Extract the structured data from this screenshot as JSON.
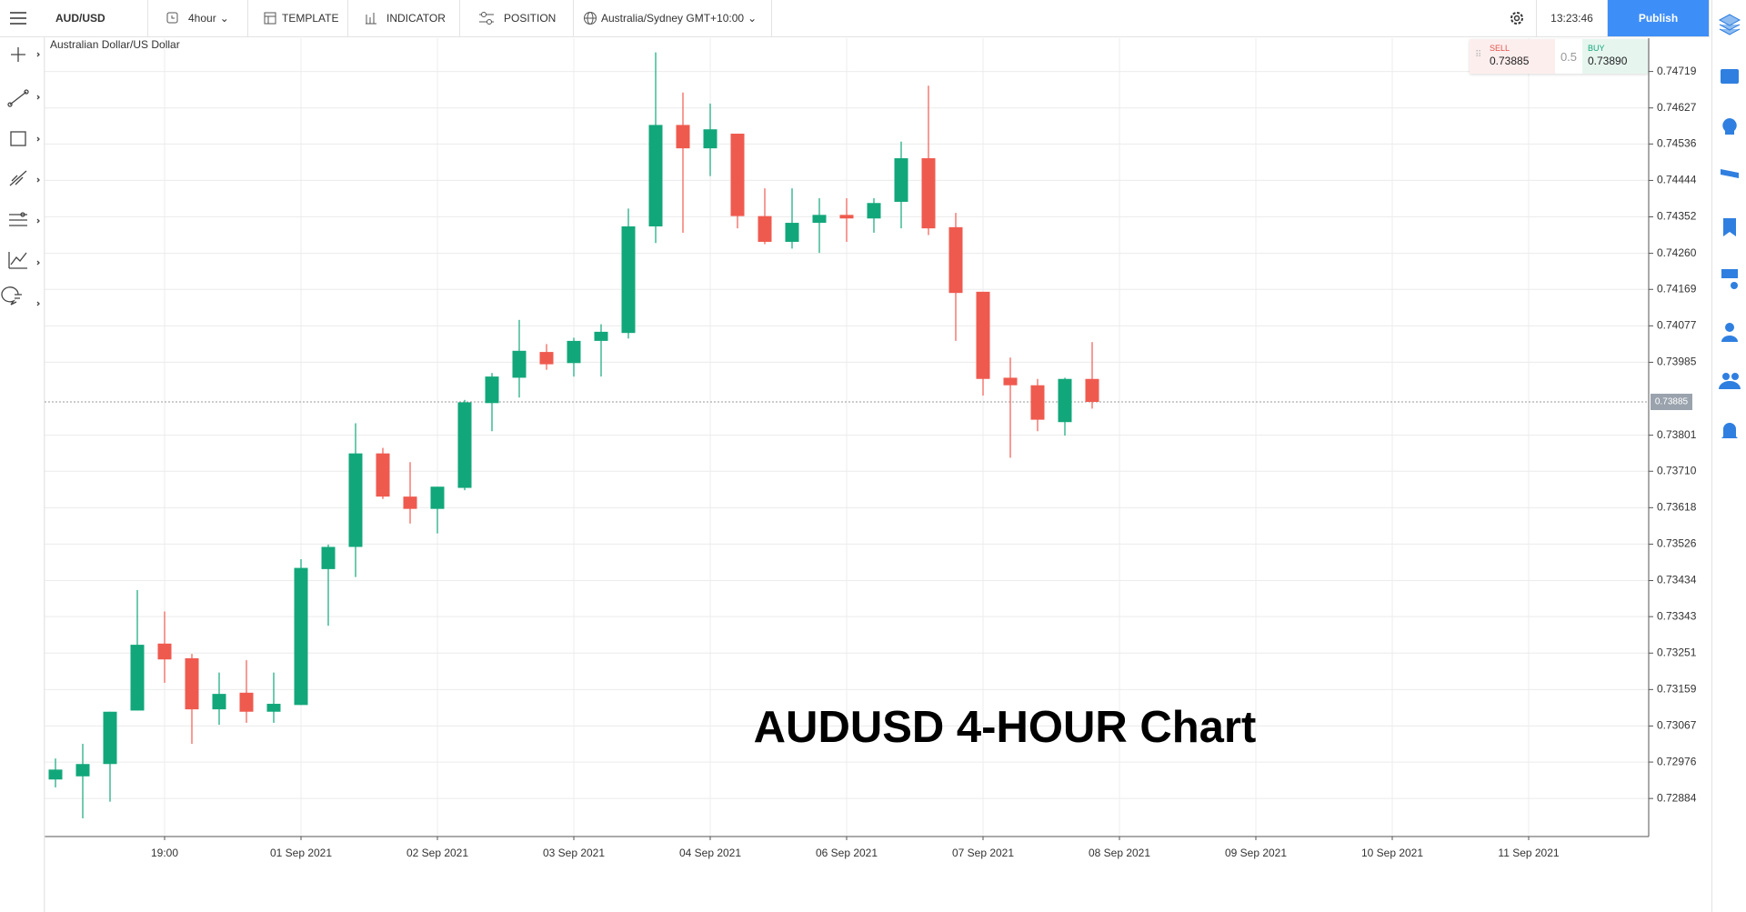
{
  "toolbar": {
    "symbol": "AUD/USD",
    "interval": "4hour",
    "template": "TEMPLATE",
    "indicator": "INDICATOR",
    "position": "POSITION",
    "timezone": "Australia/Sydney GMT+10:00",
    "clock": "13:23:46",
    "publish": "Publish"
  },
  "quote": {
    "sell_label": "SELL",
    "sell": "0.73885",
    "spread": "0.5",
    "buy_label": "BUY",
    "buy": "0.73890"
  },
  "chart_data": {
    "type": "candlestick",
    "title": "Australian Dollar/US Dollar",
    "annotation": "AUDUSD 4-HOUR Chart",
    "up_color": "#12a77a",
    "down_color": "#ef5a4f",
    "grid": true,
    "categories": [
      null,
      null,
      null,
      null,
      "19:00",
      null,
      null,
      null,
      null,
      "01 Sep 2021",
      null,
      null,
      null,
      null,
      "02 Sep 2021",
      null,
      null,
      null,
      null,
      "03 Sep 2021",
      null,
      null,
      null,
      null,
      "04 Sep 2021",
      null,
      null,
      null,
      null,
      "06 Sep 2021",
      null,
      null,
      null,
      null,
      "07 Sep 2021",
      null,
      null,
      null,
      null,
      "08 Sep 2021",
      null,
      null,
      null,
      null,
      "09 Sep 2021",
      null,
      null,
      null,
      null,
      "10 Sep 2021",
      null,
      null,
      null,
      null,
      "11 Sep 2021"
    ],
    "open": [
      0.72932,
      0.7294,
      0.72971,
      0.73106,
      0.73275,
      0.73238,
      0.73109,
      0.73151,
      0.73103,
      0.7312,
      0.73463,
      0.73519,
      0.73755,
      0.73646,
      0.73615,
      0.73668,
      0.73882,
      0.73946,
      0.74011,
      0.73983,
      0.74039,
      0.74059,
      0.74328,
      0.74584,
      0.74525,
      0.74562,
      0.74354,
      0.74289,
      0.74337,
      0.74357,
      0.74348,
      0.7439,
      0.745,
      0.74326,
      0.74163,
      0.73946,
      0.73927,
      0.73834,
      0.73943,
      null,
      null,
      null,
      null,
      null,
      null,
      null,
      null,
      null,
      null,
      null,
      null,
      null,
      null,
      null,
      null
    ],
    "high": [
      0.72985,
      0.73022,
      0.73103,
      0.7341,
      0.73356,
      0.73249,
      0.73202,
      0.73233,
      0.73202,
      0.73488,
      0.73525,
      0.73831,
      0.73769,
      0.73733,
      0.73671,
      0.7389,
      0.73958,
      0.74092,
      0.74031,
      0.74047,
      0.74081,
      0.74373,
      0.74767,
      0.74666,
      0.74638,
      0.74562,
      0.74424,
      0.74424,
      0.74399,
      0.74399,
      0.74399,
      0.74542,
      0.74683,
      0.74362,
      0.74163,
      0.73997,
      0.73943,
      0.73946,
      0.74036,
      null,
      null,
      null,
      null,
      null,
      null,
      null,
      null,
      null,
      null,
      null,
      null,
      null,
      null,
      null,
      null
    ],
    "low": [
      0.72912,
      0.72834,
      0.72876,
      0.73106,
      0.73176,
      0.73022,
      0.7307,
      0.73075,
      0.73075,
      0.7312,
      0.7332,
      0.73443,
      0.7364,
      0.73578,
      0.73553,
      0.73662,
      0.73811,
      0.73896,
      0.73966,
      0.73949,
      0.73949,
      0.74045,
      0.74286,
      0.74312,
      0.74455,
      0.74323,
      0.74283,
      0.74272,
      0.74261,
      0.74289,
      0.74312,
      0.74323,
      0.74306,
      0.74039,
      0.73901,
      0.73744,
      0.73811,
      0.738,
      0.73868,
      null,
      null,
      null,
      null,
      null,
      null,
      null,
      null,
      null,
      null,
      null,
      null,
      null,
      null,
      null,
      null
    ],
    "close": [
      0.72957,
      0.72971,
      0.73103,
      0.73272,
      0.73235,
      0.73109,
      0.73148,
      0.73103,
      0.73123,
      0.73466,
      0.73519,
      0.73755,
      0.73646,
      0.73615,
      0.73671,
      0.73884,
      0.73949,
      0.74014,
      0.7398,
      0.74039,
      0.74062,
      0.74328,
      0.74584,
      0.74525,
      0.74573,
      0.74354,
      0.74289,
      0.74337,
      0.74357,
      0.74348,
      0.74387,
      0.745,
      0.74323,
      0.7416,
      0.73943,
      0.73927,
      0.7384,
      0.73943,
      0.73885,
      null,
      null,
      null,
      null,
      null,
      null,
      null,
      null,
      null,
      null,
      null,
      null,
      null,
      null,
      null,
      null
    ],
    "last_price": 0.73885,
    "ylim": [
      0.72788,
      0.74803
    ],
    "yticks": [
      0.74719,
      0.74627,
      0.74536,
      0.74444,
      0.74352,
      {
        "value": 0.7426,
        "label": "0.74260"
      },
      0.74169,
      0.74077,
      0.73985,
      0.73801,
      {
        "value": 0.7371,
        "label": "0.73710"
      },
      0.73618,
      0.73526,
      0.73434,
      0.73343,
      0.73251,
      0.73159,
      0.73067,
      0.72976,
      0.72884
    ]
  }
}
